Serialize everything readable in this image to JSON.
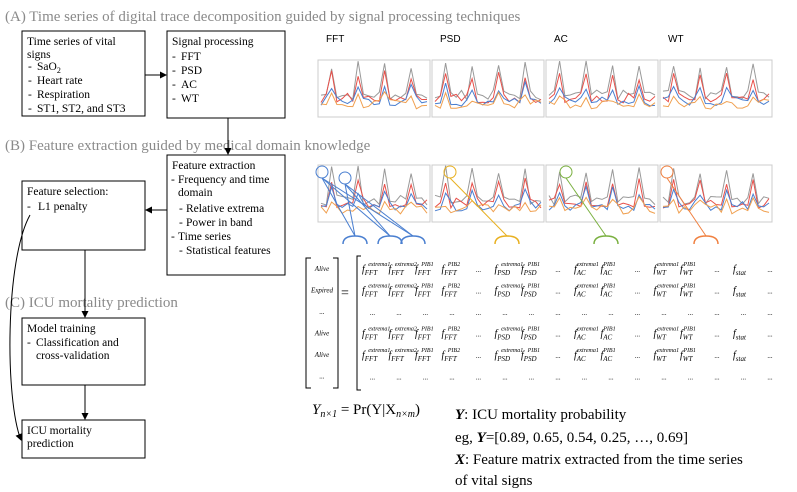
{
  "sections": {
    "a": "(A)  Time series of digital trace decomposition guided by signal processing techniques",
    "b": "(B)  Feature extraction guided by medical domain knowledge",
    "c": "(C)  ICU mortality prediction"
  },
  "boxes": {
    "vital": {
      "title": "Time series of vital signs",
      "items": [
        {
          "text": "SaO",
          "sub": "2"
        },
        {
          "text": "Heart rate"
        },
        {
          "text": "Respiration"
        },
        {
          "text": "ST1, ST2, and ST3"
        }
      ]
    },
    "signal": {
      "title": "Signal processing",
      "items": [
        "FFT",
        "PSD",
        "AC",
        "WT"
      ]
    },
    "extraction": {
      "title": "Feature extraction",
      "items": [
        "Frequency and time domain",
        "Relative extrema",
        "Power in band",
        "Time series",
        "Statistical features"
      ]
    },
    "selection": {
      "title": "Feature selection:",
      "items": [
        "L1 penalty"
      ]
    },
    "training": {
      "title": "Model training",
      "items": [
        "Classification and cross-validation"
      ]
    },
    "prediction": {
      "title": "ICU mortality prediction"
    }
  },
  "panel_labels": [
    "FFT",
    "PSD",
    "AC",
    "WT"
  ],
  "matrix": {
    "labels": [
      "Alive",
      "Expired",
      "...",
      "Alive",
      "Alive",
      "..."
    ],
    "rows": [
      [
        [
          "extrema1",
          "FFT"
        ],
        [
          "extrema2",
          "FFT"
        ],
        [
          "PIB1",
          "FFT"
        ],
        [
          "PIB2",
          "FFT"
        ],
        "...",
        [
          "extrema1",
          "PSD"
        ],
        [
          "PIB1",
          "PSD"
        ],
        "...",
        [
          "extrema1",
          "AC"
        ],
        [
          "PIB1",
          "AC"
        ],
        "...",
        [
          "extrema1",
          "WT"
        ],
        [
          "PIB1",
          "WT"
        ],
        "...",
        [
          "",
          "stat"
        ],
        "..."
      ],
      [
        [
          "extrema1",
          "FFT"
        ],
        [
          "extrema2",
          "FFT"
        ],
        [
          "PIB1",
          "FFT"
        ],
        [
          "PIB2",
          "FFT"
        ],
        "...",
        [
          "extrema1",
          "PSD"
        ],
        [
          "PIB1",
          "PSD"
        ],
        "...",
        [
          "extrema1",
          "AC"
        ],
        [
          "PIB1",
          "AC"
        ],
        "...",
        [
          "extrema1",
          "WT"
        ],
        [
          "PIB1",
          "WT"
        ],
        "...",
        [
          "",
          "stat"
        ],
        "..."
      ],
      [
        "...",
        "...",
        "...",
        "...",
        "...",
        "...",
        "...",
        "...",
        "...",
        "...",
        "...",
        "...",
        "...",
        "...",
        "...",
        "..."
      ],
      [
        [
          "extrema1",
          "FFT"
        ],
        [
          "extrema2",
          "FFT"
        ],
        [
          "PIB1",
          "FFT"
        ],
        [
          "PIB2",
          "FFT"
        ],
        "...",
        [
          "extrema1",
          "PSD"
        ],
        [
          "PIB1",
          "PSD"
        ],
        "...",
        [
          "extrema1",
          "AC"
        ],
        [
          "PIB1",
          "AC"
        ],
        "...",
        [
          "extrema1",
          "WT"
        ],
        [
          "PIB1",
          "WT"
        ],
        "...",
        [
          "",
          "stat"
        ],
        "..."
      ],
      [
        [
          "extrema1",
          "FFT"
        ],
        [
          "extrema2",
          "FFT"
        ],
        [
          "PIB1",
          "FFT"
        ],
        [
          "PIB2",
          "FFT"
        ],
        "...",
        [
          "extrema1",
          "PSD"
        ],
        [
          "PIB1",
          "PSD"
        ],
        "...",
        [
          "extrema1",
          "AC"
        ],
        [
          "PIB1",
          "AC"
        ],
        "...",
        [
          "extrema1",
          "WT"
        ],
        [
          "PIB1",
          "WT"
        ],
        "...",
        [
          "",
          "stat"
        ],
        "..."
      ],
      [
        "...",
        "...",
        "...",
        "...",
        "...",
        "...",
        "...",
        "...",
        "...",
        "...",
        "...",
        "...",
        "...",
        "...",
        "...",
        "..."
      ]
    ],
    "symbol": "f"
  },
  "formula": {
    "y": "Y",
    "y_sub": "n×1",
    "middle": " = Pr(Y|X",
    "x_sub": "n×m",
    "end": ")"
  },
  "legend": {
    "y_var": "Y",
    "y_text": ": ICU mortality probability",
    "eg_pre": "eg, ",
    "eg_var": "Y",
    "eg_text": "=[0.89, 0.65, 0.54, 0.25, …, 0.69]",
    "x_var": "X",
    "x_text": ": Feature matrix extracted from the time series",
    "x_text2": "of vital signs"
  }
}
